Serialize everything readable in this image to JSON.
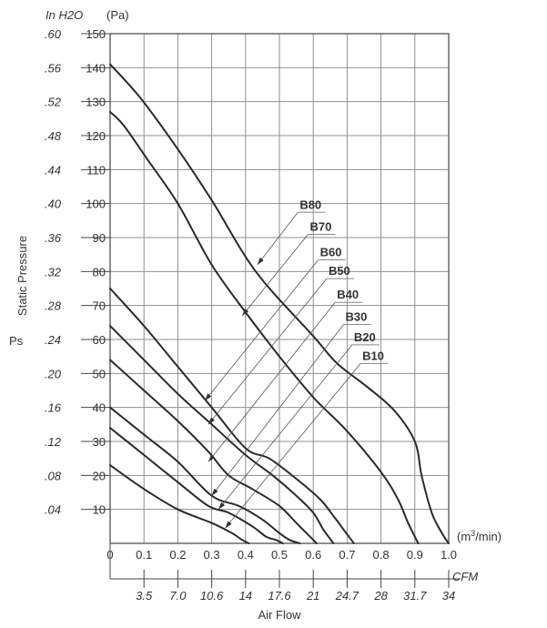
{
  "chart_data": {
    "type": "line",
    "ylabel": "Static Pressure",
    "ylabel_symbol": "Ps",
    "y_unit_left": "In H2O",
    "y_unit_right": "(Pa)",
    "x_unit_top": "(m3/min)",
    "x_unit_bottom": "CFM",
    "xlabel": "Air Flow",
    "xlim": [
      0,
      1.0
    ],
    "ylim": [
      0,
      150
    ],
    "grid": true,
    "y_ticks_pa": [
      10,
      20,
      30,
      40,
      50,
      60,
      70,
      80,
      90,
      100,
      110,
      120,
      130,
      140,
      150
    ],
    "y_ticks_inh2o": [
      {
        "value": 10,
        "label": ".04"
      },
      {
        "value": 20,
        "label": ".08"
      },
      {
        "value": 30,
        "label": ".12"
      },
      {
        "value": 40,
        "label": ".16"
      },
      {
        "value": 50,
        "label": ".20"
      },
      {
        "value": 60,
        "label": ".24"
      },
      {
        "value": 70,
        "label": ".28"
      },
      {
        "value": 80,
        "label": ".32"
      },
      {
        "value": 90,
        "label": ".36"
      },
      {
        "value": 100,
        "label": ".40"
      },
      {
        "value": 110,
        "label": ".44"
      },
      {
        "value": 120,
        "label": ".48"
      },
      {
        "value": 130,
        "label": ".52"
      },
      {
        "value": 140,
        "label": ".56"
      },
      {
        "value": 150,
        "label": ".60"
      }
    ],
    "x_ticks_m3min": [
      {
        "value": 0,
        "label": "0"
      },
      {
        "value": 0.1,
        "label": "0.1"
      },
      {
        "value": 0.2,
        "label": "0.2"
      },
      {
        "value": 0.3,
        "label": "0.3"
      },
      {
        "value": 0.4,
        "label": "0.4"
      },
      {
        "value": 0.5,
        "label": "0.5"
      },
      {
        "value": 0.6,
        "label": "0.6"
      },
      {
        "value": 0.7,
        "label": "0.7"
      },
      {
        "value": 0.8,
        "label": "0.8"
      },
      {
        "value": 0.9,
        "label": "0.9"
      },
      {
        "value": 1.0,
        "label": "1.0"
      }
    ],
    "x_ticks_cfm": [
      {
        "value": 0.1,
        "label": "3.5"
      },
      {
        "value": 0.2,
        "label": "7.0"
      },
      {
        "value": 0.3,
        "label": "10.6"
      },
      {
        "value": 0.4,
        "label": "14"
      },
      {
        "value": 0.5,
        "label": "17.6"
      },
      {
        "value": 0.6,
        "label": "21"
      },
      {
        "value": 0.7,
        "label": "24.7"
      },
      {
        "value": 0.8,
        "label": "28"
      },
      {
        "value": 0.9,
        "label": "31.7"
      },
      {
        "value": 1.0,
        "label": "34"
      }
    ],
    "series": [
      {
        "name": "B80",
        "x": [
          0,
          0.09,
          0.2,
          0.3,
          0.43,
          0.6,
          0.67,
          0.76,
          0.84,
          0.9,
          0.92,
          0.95,
          0.98,
          1.0
        ],
        "y": [
          141,
          131,
          116,
          101,
          80,
          61,
          53,
          46,
          39,
          30,
          20,
          9,
          3,
          0
        ]
      },
      {
        "name": "B70",
        "x": [
          0,
          0.04,
          0.11,
          0.2,
          0.3,
          0.4,
          0.5,
          0.6,
          0.7,
          0.8,
          0.85,
          0.88,
          0.91
        ],
        "y": [
          127,
          123,
          113,
          100,
          82,
          68,
          55,
          43,
          33,
          21,
          13,
          6,
          0
        ]
      },
      {
        "name": "B60",
        "x": [
          0,
          0.1,
          0.2,
          0.3,
          0.4,
          0.47,
          0.55,
          0.62,
          0.66,
          0.69,
          0.72
        ],
        "y": [
          75,
          64,
          52,
          40,
          28,
          25,
          19,
          13,
          8,
          4,
          0
        ]
      },
      {
        "name": "B50",
        "x": [
          0,
          0.1,
          0.2,
          0.3,
          0.4,
          0.48,
          0.55,
          0.6,
          0.63,
          0.66
        ],
        "y": [
          64,
          54,
          44,
          35,
          26,
          20,
          14,
          9,
          4,
          0
        ]
      },
      {
        "name": "B40",
        "x": [
          0,
          0.1,
          0.2,
          0.29,
          0.35,
          0.42,
          0.5,
          0.55,
          0.58,
          0.61
        ],
        "y": [
          54,
          45,
          36,
          27,
          20,
          16,
          11,
          6,
          3,
          0
        ]
      },
      {
        "name": "B30",
        "x": [
          0,
          0.1,
          0.2,
          0.3,
          0.38,
          0.45,
          0.5,
          0.53,
          0.56
        ],
        "y": [
          40,
          32,
          24,
          14,
          11,
          7,
          3,
          1,
          0
        ]
      },
      {
        "name": "B20",
        "x": [
          0,
          0.1,
          0.2,
          0.29,
          0.35,
          0.42,
          0.46,
          0.49,
          0.51
        ],
        "y": [
          34,
          26,
          18,
          11,
          9,
          5,
          2,
          1,
          0
        ]
      },
      {
        "name": "B10",
        "x": [
          0,
          0.1,
          0.2,
          0.3,
          0.36,
          0.39,
          0.41
        ],
        "y": [
          23,
          16,
          10,
          6,
          3,
          1,
          0
        ]
      }
    ],
    "labels": [
      {
        "name": "B80",
        "tx": 0.56,
        "ty": 98.5,
        "ax": 0.435,
        "ay": 82
      },
      {
        "name": "B70",
        "tx": 0.59,
        "ty": 92,
        "ax": 0.39,
        "ay": 67
      },
      {
        "name": "B60",
        "tx": 0.62,
        "ty": 84.5,
        "ax": 0.28,
        "ay": 42
      },
      {
        "name": "B50",
        "tx": 0.645,
        "ty": 79,
        "ax": 0.29,
        "ay": 35
      },
      {
        "name": "B40",
        "tx": 0.67,
        "ty": 72,
        "ax": 0.29,
        "ay": 24
      },
      {
        "name": "B30",
        "tx": 0.695,
        "ty": 65.5,
        "ax": 0.3,
        "ay": 14
      },
      {
        "name": "B20",
        "tx": 0.72,
        "ty": 59.5,
        "ax": 0.32,
        "ay": 10
      },
      {
        "name": "B10",
        "tx": 0.745,
        "ty": 54,
        "ax": 0.34,
        "ay": 4.5
      }
    ]
  }
}
